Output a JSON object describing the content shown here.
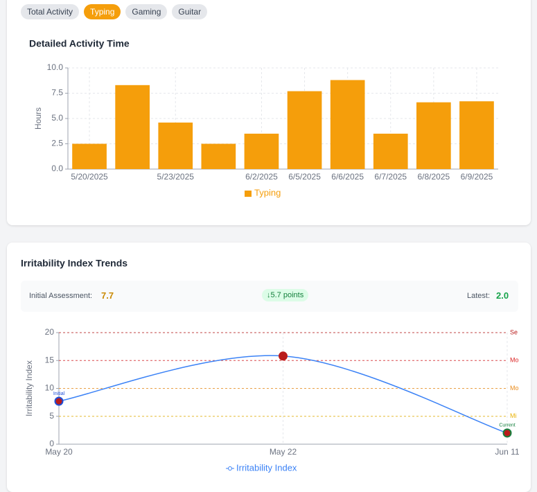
{
  "tabs": [
    "Total Activity",
    "Typing",
    "Gaming",
    "Guitar"
  ],
  "active_tab": 1,
  "chart_data": [
    {
      "type": "bar",
      "title": "Detailed Activity Time",
      "y_label": "Hours",
      "categories": [
        "5/20/2025",
        null,
        "5/23/2025",
        null,
        "6/2/2025",
        "6/5/2025",
        "6/6/2025",
        "6/7/2025",
        "6/8/2025",
        "6/9/2025"
      ],
      "series": [
        {
          "name": "Typing",
          "color": "#f59e0b",
          "values": [
            2.5,
            8.3,
            4.6,
            2.5,
            3.5,
            7.7,
            8.8,
            3.5,
            6.6,
            6.7
          ]
        }
      ],
      "ylim": [
        0,
        10
      ],
      "yticks": [
        {
          "value": 0,
          "label": "0.0"
        },
        {
          "value": 2.5,
          "label": "2.5"
        },
        {
          "value": 5,
          "label": "5.0"
        },
        {
          "value": 7.5,
          "label": "7.5"
        },
        {
          "value": 10,
          "label": "10.0"
        }
      ],
      "grid": true,
      "legend": "bottom"
    },
    {
      "type": "line",
      "title": "Irritability Index Trends",
      "y_label": "Irritability Index",
      "categories": [
        "May 20",
        "May 22",
        "Jun 11"
      ],
      "series": [
        {
          "name": "Irritability Index",
          "color": "#3b82f6",
          "values": [
            7.7,
            15.8,
            2.0
          ],
          "point_colors": [
            "#b91c1c",
            "#b91c1c",
            "#b91c1c"
          ],
          "point_strokes": [
            "#1d4ed8",
            "#b91c1c",
            "#15803d"
          ],
          "point_labels": [
            "Initial",
            null,
            "Current"
          ]
        }
      ],
      "ylim": [
        0,
        20
      ],
      "yticks": [
        0,
        5,
        10,
        15,
        20
      ],
      "grid": true,
      "legend": "bottom",
      "thresholds": [
        {
          "value": 20,
          "label": "Se",
          "color": "#b91c1c"
        },
        {
          "value": 15,
          "label": "Mo",
          "color": "#dc2626"
        },
        {
          "value": 10,
          "label": "Mo",
          "color": "#ea8c1c"
        },
        {
          "value": 5,
          "label": "Mi",
          "color": "#eab308"
        }
      ]
    }
  ],
  "stats": {
    "initial_label": "Initial Assessment:",
    "initial_value": "7.7",
    "change": "↓5.7 points",
    "latest_label": "Latest:",
    "latest_value": "2.0"
  }
}
